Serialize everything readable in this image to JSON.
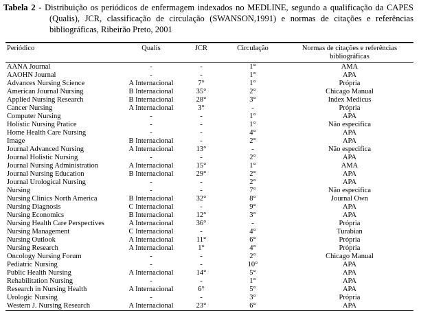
{
  "title": {
    "label": "Tabela 2",
    "body": "- Distribuição os periódicos de enfermagem indexados no MEDLINE, segundo a qualificação da CAPES (Qualis), JCR, classificação de circulação (SWANSON,1991) e normas de citações e referências bibliográficas, Ribeirão Preto, 2001"
  },
  "table": {
    "headers": [
      "Periódico",
      "Qualis",
      "JCR",
      "Circulação",
      "Normas de citações e referências bibliográficas"
    ],
    "rows": [
      [
        "AANA Journal",
        "-",
        "-",
        "1°",
        "AMA"
      ],
      [
        "AAOHN Journal",
        "-",
        "-",
        "1°",
        "APA"
      ],
      [
        "Advances Nursing Science",
        "A Internacional",
        "7°",
        "1°",
        "Própria"
      ],
      [
        "American Journal Nursing",
        "B Internacional",
        "35°",
        "2°",
        "Chicago Manual"
      ],
      [
        "Applied Nursing Research",
        "B Internacional",
        "28°",
        "3°",
        "Index Medicus"
      ],
      [
        "Cancer Nursing",
        "A Internacional",
        "3°",
        "-",
        "Própria"
      ],
      [
        "Computer Nursing",
        "-",
        "-",
        "1°",
        "APA"
      ],
      [
        "Holistic Nursing Pratice",
        "-",
        "-",
        "1°",
        "Não especifica"
      ],
      [
        "Home Health Care Nursing",
        "-",
        "-",
        "4°",
        "APA"
      ],
      [
        "Image",
        "B Internacional",
        "-",
        "2°",
        "APA"
      ],
      [
        "Journal Advanced Nursing",
        "A Internacional",
        "13°",
        "-",
        "Não especifica"
      ],
      [
        "Journal Holistic Nursing",
        "-",
        "-",
        "2°",
        "APA"
      ],
      [
        "Journal Nursing Administration",
        "A Internacional",
        "15°",
        "1°",
        "AMA"
      ],
      [
        "Journal Nursing Education",
        "B Internacional",
        "29°",
        "2°",
        "APA"
      ],
      [
        "Journal Urological Nursing",
        "-",
        "-",
        "2°",
        "APA"
      ],
      [
        "Nursing",
        "-",
        "-",
        "7°",
        "Não especifica"
      ],
      [
        "Nursing Clinics North America",
        "B Internacional",
        "32°",
        "8°",
        "Journal Own"
      ],
      [
        "Nursing Diagnosis",
        "C Internacional",
        "-",
        "9°",
        "APA"
      ],
      [
        "Nursing Economics",
        "B Internacional",
        "12°",
        "3°",
        "APA"
      ],
      [
        "Nursing Health Care Perspectives",
        "A Internacional",
        "36°",
        "-",
        "Própria"
      ],
      [
        "Nursing Management",
        "C Internacional",
        "-",
        "4°",
        "Turabian"
      ],
      [
        "Nursing Outlook",
        "A Internacional",
        "11°",
        "6°",
        "Própria"
      ],
      [
        "Nursing Research",
        "A Internacional",
        "1°",
        "4°",
        "Própria"
      ],
      [
        "Oncology Nursing Forum",
        "-",
        "-",
        "2°",
        "Chicago Manual"
      ],
      [
        "Pediatric Nursing",
        "-",
        "-",
        "10°",
        "APA"
      ],
      [
        "Public Health Nursing",
        "A Internacional",
        "14°",
        "5°",
        "APA"
      ],
      [
        "Rehabilitation Nursing",
        "-",
        "-",
        "1°",
        "APA"
      ],
      [
        "Research in Nursing Health",
        "A Internacional",
        "6°",
        "5°",
        "APA"
      ],
      [
        "Urologic Nursing",
        "-",
        "-",
        "3°",
        "Própria"
      ],
      [
        "Western J. Nursing Research",
        "A Internacional",
        "23°",
        "6°",
        "APA"
      ]
    ]
  }
}
